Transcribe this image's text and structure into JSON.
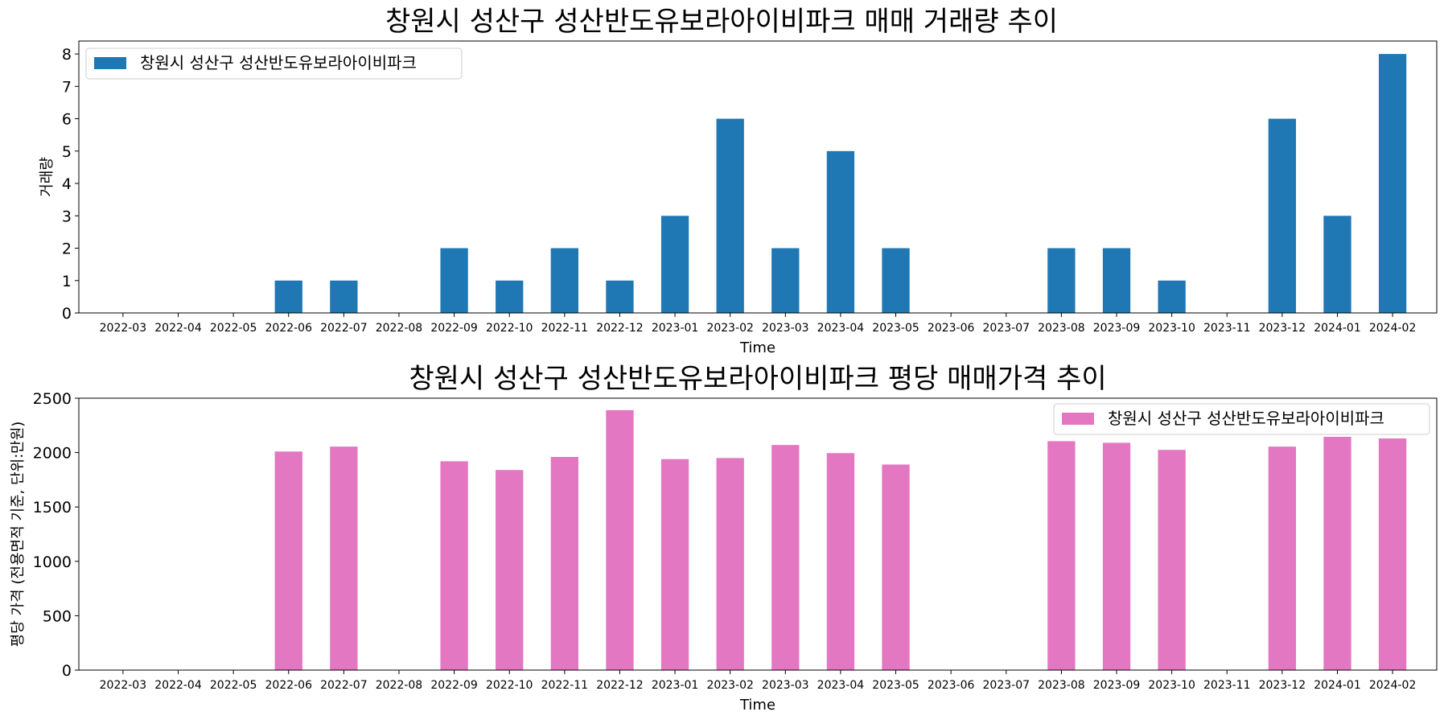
{
  "chart_data": [
    {
      "type": "bar",
      "title": "창원시 성산구 성산반도유보라아이비파크 매매 거래량 추이",
      "xlabel": "Time",
      "ylabel": "거래량",
      "ylim": [
        0,
        8.4
      ],
      "yticks": [
        0,
        1,
        2,
        3,
        4,
        5,
        6,
        7,
        8
      ],
      "legend_position": "top-left",
      "grid": false,
      "categories": [
        "2022-03",
        "2022-04",
        "2022-05",
        "2022-06",
        "2022-07",
        "2022-08",
        "2022-09",
        "2022-10",
        "2022-11",
        "2022-12",
        "2023-01",
        "2023-02",
        "2023-03",
        "2023-04",
        "2023-05",
        "2023-06",
        "2023-07",
        "2023-08",
        "2023-09",
        "2023-10",
        "2023-11",
        "2023-12",
        "2024-01",
        "2024-02"
      ],
      "series": [
        {
          "name": "창원시 성산구 성산반도유보라아이비파크",
          "color": "#1f77b4",
          "values": [
            0,
            0,
            0,
            1,
            1,
            0,
            2,
            1,
            2,
            1,
            3,
            6,
            2,
            5,
            2,
            0,
            0,
            2,
            2,
            1,
            0,
            6,
            3,
            8
          ]
        }
      ]
    },
    {
      "type": "bar",
      "title": "창원시 성산구 성산반도유보라아이비파크 평당 매매가격 추이",
      "xlabel": "Time",
      "ylabel": "평당 가격 (전용면적 기준, 단위:만원)",
      "ylim": [
        0,
        2500
      ],
      "yticks": [
        0,
        500,
        1000,
        1500,
        2000,
        2500
      ],
      "legend_position": "top-right",
      "grid": false,
      "categories": [
        "2022-03",
        "2022-04",
        "2022-05",
        "2022-06",
        "2022-07",
        "2022-08",
        "2022-09",
        "2022-10",
        "2022-11",
        "2022-12",
        "2023-01",
        "2023-02",
        "2023-03",
        "2023-04",
        "2023-05",
        "2023-06",
        "2023-07",
        "2023-08",
        "2023-09",
        "2023-10",
        "2023-11",
        "2023-12",
        "2024-01",
        "2024-02"
      ],
      "series": [
        {
          "name": "창원시 성산구 성산반도유보라아이비파크",
          "color": "#e377c2",
          "values": [
            0,
            0,
            0,
            2010,
            2055,
            0,
            1920,
            1840,
            1960,
            2390,
            1940,
            1950,
            2070,
            1995,
            1890,
            0,
            0,
            2105,
            2090,
            2025,
            0,
            2055,
            2145,
            2130
          ]
        }
      ]
    }
  ]
}
